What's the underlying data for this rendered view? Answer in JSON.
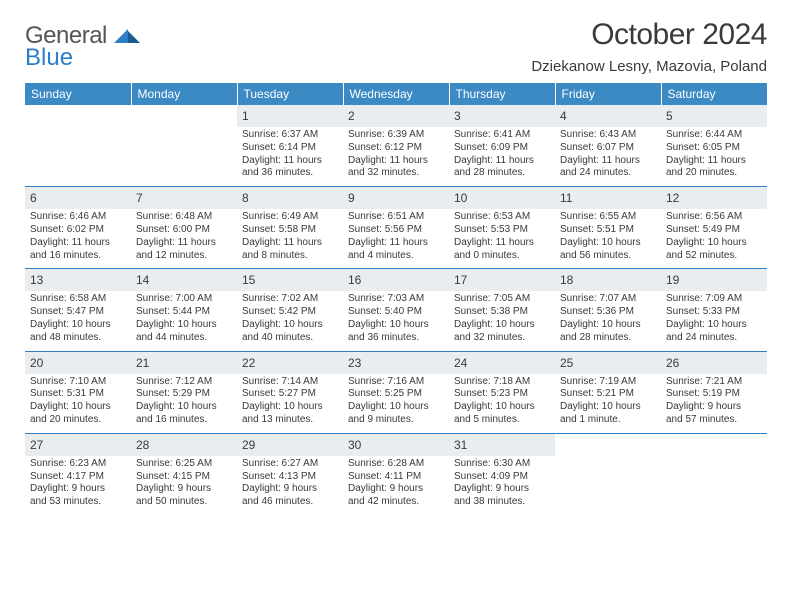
{
  "brand": {
    "word1": "General",
    "word2": "Blue"
  },
  "title": "October 2024",
  "location": "Dziekanow Lesny, Mazovia, Poland",
  "columns": [
    "Sunday",
    "Monday",
    "Tuesday",
    "Wednesday",
    "Thursday",
    "Friday",
    "Saturday"
  ],
  "colors": {
    "header_bg": "#3b8ac4",
    "header_text": "#ffffff",
    "daynum_bg": "#e9edf0",
    "rule": "#2d7ec6",
    "brand_accent": "#2d7ec6",
    "body_text": "#3a3a3a",
    "page_bg": "#ffffff"
  },
  "type": "calendar-table",
  "weeks": [
    [
      null,
      null,
      {
        "n": "1",
        "sr": "Sunrise: 6:37 AM",
        "ss": "Sunset: 6:14 PM",
        "d1": "Daylight: 11 hours",
        "d2": "and 36 minutes."
      },
      {
        "n": "2",
        "sr": "Sunrise: 6:39 AM",
        "ss": "Sunset: 6:12 PM",
        "d1": "Daylight: 11 hours",
        "d2": "and 32 minutes."
      },
      {
        "n": "3",
        "sr": "Sunrise: 6:41 AM",
        "ss": "Sunset: 6:09 PM",
        "d1": "Daylight: 11 hours",
        "d2": "and 28 minutes."
      },
      {
        "n": "4",
        "sr": "Sunrise: 6:43 AM",
        "ss": "Sunset: 6:07 PM",
        "d1": "Daylight: 11 hours",
        "d2": "and 24 minutes."
      },
      {
        "n": "5",
        "sr": "Sunrise: 6:44 AM",
        "ss": "Sunset: 6:05 PM",
        "d1": "Daylight: 11 hours",
        "d2": "and 20 minutes."
      }
    ],
    [
      {
        "n": "6",
        "sr": "Sunrise: 6:46 AM",
        "ss": "Sunset: 6:02 PM",
        "d1": "Daylight: 11 hours",
        "d2": "and 16 minutes."
      },
      {
        "n": "7",
        "sr": "Sunrise: 6:48 AM",
        "ss": "Sunset: 6:00 PM",
        "d1": "Daylight: 11 hours",
        "d2": "and 12 minutes."
      },
      {
        "n": "8",
        "sr": "Sunrise: 6:49 AM",
        "ss": "Sunset: 5:58 PM",
        "d1": "Daylight: 11 hours",
        "d2": "and 8 minutes."
      },
      {
        "n": "9",
        "sr": "Sunrise: 6:51 AM",
        "ss": "Sunset: 5:56 PM",
        "d1": "Daylight: 11 hours",
        "d2": "and 4 minutes."
      },
      {
        "n": "10",
        "sr": "Sunrise: 6:53 AM",
        "ss": "Sunset: 5:53 PM",
        "d1": "Daylight: 11 hours",
        "d2": "and 0 minutes."
      },
      {
        "n": "11",
        "sr": "Sunrise: 6:55 AM",
        "ss": "Sunset: 5:51 PM",
        "d1": "Daylight: 10 hours",
        "d2": "and 56 minutes."
      },
      {
        "n": "12",
        "sr": "Sunrise: 6:56 AM",
        "ss": "Sunset: 5:49 PM",
        "d1": "Daylight: 10 hours",
        "d2": "and 52 minutes."
      }
    ],
    [
      {
        "n": "13",
        "sr": "Sunrise: 6:58 AM",
        "ss": "Sunset: 5:47 PM",
        "d1": "Daylight: 10 hours",
        "d2": "and 48 minutes."
      },
      {
        "n": "14",
        "sr": "Sunrise: 7:00 AM",
        "ss": "Sunset: 5:44 PM",
        "d1": "Daylight: 10 hours",
        "d2": "and 44 minutes."
      },
      {
        "n": "15",
        "sr": "Sunrise: 7:02 AM",
        "ss": "Sunset: 5:42 PM",
        "d1": "Daylight: 10 hours",
        "d2": "and 40 minutes."
      },
      {
        "n": "16",
        "sr": "Sunrise: 7:03 AM",
        "ss": "Sunset: 5:40 PM",
        "d1": "Daylight: 10 hours",
        "d2": "and 36 minutes."
      },
      {
        "n": "17",
        "sr": "Sunrise: 7:05 AM",
        "ss": "Sunset: 5:38 PM",
        "d1": "Daylight: 10 hours",
        "d2": "and 32 minutes."
      },
      {
        "n": "18",
        "sr": "Sunrise: 7:07 AM",
        "ss": "Sunset: 5:36 PM",
        "d1": "Daylight: 10 hours",
        "d2": "and 28 minutes."
      },
      {
        "n": "19",
        "sr": "Sunrise: 7:09 AM",
        "ss": "Sunset: 5:33 PM",
        "d1": "Daylight: 10 hours",
        "d2": "and 24 minutes."
      }
    ],
    [
      {
        "n": "20",
        "sr": "Sunrise: 7:10 AM",
        "ss": "Sunset: 5:31 PM",
        "d1": "Daylight: 10 hours",
        "d2": "and 20 minutes."
      },
      {
        "n": "21",
        "sr": "Sunrise: 7:12 AM",
        "ss": "Sunset: 5:29 PM",
        "d1": "Daylight: 10 hours",
        "d2": "and 16 minutes."
      },
      {
        "n": "22",
        "sr": "Sunrise: 7:14 AM",
        "ss": "Sunset: 5:27 PM",
        "d1": "Daylight: 10 hours",
        "d2": "and 13 minutes."
      },
      {
        "n": "23",
        "sr": "Sunrise: 7:16 AM",
        "ss": "Sunset: 5:25 PM",
        "d1": "Daylight: 10 hours",
        "d2": "and 9 minutes."
      },
      {
        "n": "24",
        "sr": "Sunrise: 7:18 AM",
        "ss": "Sunset: 5:23 PM",
        "d1": "Daylight: 10 hours",
        "d2": "and 5 minutes."
      },
      {
        "n": "25",
        "sr": "Sunrise: 7:19 AM",
        "ss": "Sunset: 5:21 PM",
        "d1": "Daylight: 10 hours",
        "d2": "and 1 minute."
      },
      {
        "n": "26",
        "sr": "Sunrise: 7:21 AM",
        "ss": "Sunset: 5:19 PM",
        "d1": "Daylight: 9 hours",
        "d2": "and 57 minutes."
      }
    ],
    [
      {
        "n": "27",
        "sr": "Sunrise: 6:23 AM",
        "ss": "Sunset: 4:17 PM",
        "d1": "Daylight: 9 hours",
        "d2": "and 53 minutes."
      },
      {
        "n": "28",
        "sr": "Sunrise: 6:25 AM",
        "ss": "Sunset: 4:15 PM",
        "d1": "Daylight: 9 hours",
        "d2": "and 50 minutes."
      },
      {
        "n": "29",
        "sr": "Sunrise: 6:27 AM",
        "ss": "Sunset: 4:13 PM",
        "d1": "Daylight: 9 hours",
        "d2": "and 46 minutes."
      },
      {
        "n": "30",
        "sr": "Sunrise: 6:28 AM",
        "ss": "Sunset: 4:11 PM",
        "d1": "Daylight: 9 hours",
        "d2": "and 42 minutes."
      },
      {
        "n": "31",
        "sr": "Sunrise: 6:30 AM",
        "ss": "Sunset: 4:09 PM",
        "d1": "Daylight: 9 hours",
        "d2": "and 38 minutes."
      },
      null,
      null
    ]
  ]
}
